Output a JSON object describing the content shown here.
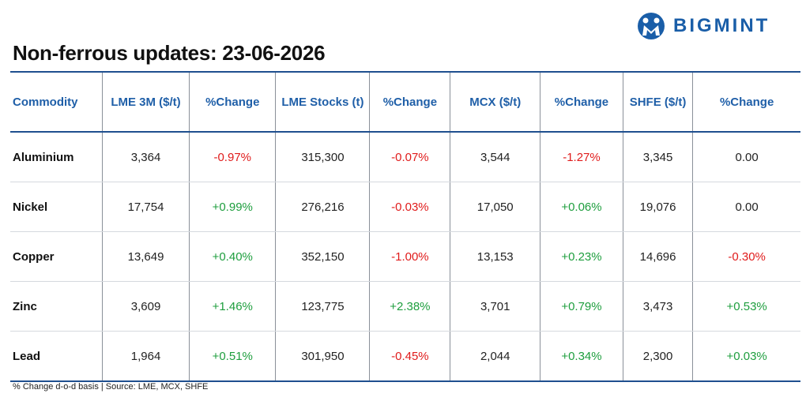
{
  "header": {
    "title": "Non-ferrous updates: 23-06-2026",
    "logo": "BIGMINT"
  },
  "table": {
    "columns": [
      "Commodity",
      "LME 3M ($/t)",
      "%Change",
      "LME Stocks (t)",
      "%Change",
      "MCX ($/t)",
      "%Change",
      "SHFE ($/t)",
      "%Change"
    ],
    "rows": [
      [
        "Aluminium",
        "3,364",
        "-0.97%",
        "315,300",
        "-0.07%",
        "3,544",
        "-1.27%",
        "3,345",
        "0.00"
      ],
      [
        "Nickel",
        "17,754",
        "+0.99%",
        "276,216",
        "-0.03%",
        "17,050",
        "+0.06%",
        "19,076",
        "0.00"
      ],
      [
        "Copper",
        "13,649",
        "+0.40%",
        "352,150",
        "-1.00%",
        "13,153",
        "+0.23%",
        "14,696",
        "-0.30%"
      ],
      [
        "Zinc",
        "3,609",
        "+1.46%",
        "123,775",
        "+2.38%",
        "3,701",
        "+0.79%",
        "3,473",
        "+0.53%"
      ],
      [
        "Lead",
        "1,964",
        "+0.51%",
        "301,950",
        "-0.45%",
        "2,044",
        "+0.34%",
        "2,300",
        "+0.03%"
      ]
    ]
  },
  "footer": {
    "note": "% Change d-o-d basis | Source: LME, MCX, SHFE"
  }
}
